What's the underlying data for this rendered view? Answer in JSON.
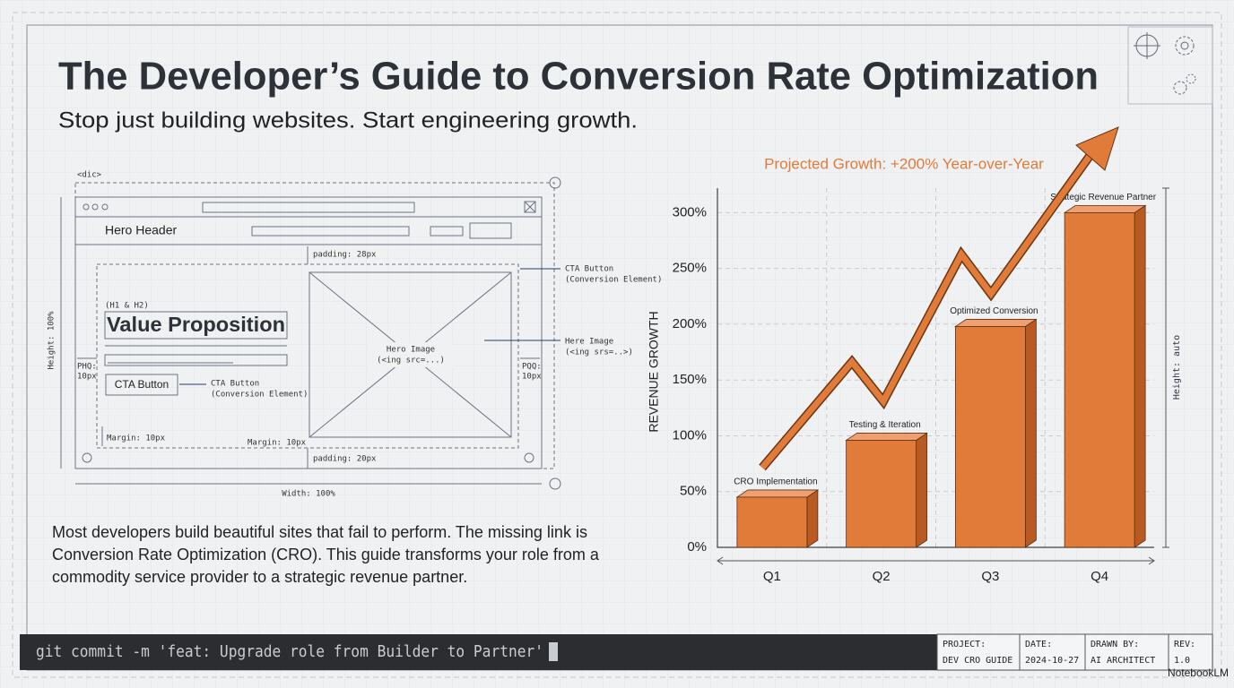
{
  "header": {
    "title": "The Developer’s Guide to Conversion Rate Optimization",
    "subtitle": "Stop just building websites. Start engineering growth."
  },
  "wireframe": {
    "tag": "<dic>",
    "hero_header": "Hero Header",
    "padding_top": "padding: 28px",
    "cta_note": "CTA Button",
    "cta_note_sub": "(Conversion Element)",
    "heading_tag": "(H1 & H2)",
    "value_prop": "Value Proposition",
    "hero_image": "Hero Image",
    "hero_image_sub": "(<ing src=...)",
    "hero_image_note": "Here Image",
    "hero_image_note_sub": "(<ing srs=..>)",
    "left_pad": "PHQ:",
    "left_pad_val": "10px",
    "right_pad": "PQQ:",
    "right_pad_val": "10px",
    "cta_button": "CTA Button",
    "cta_side": "CTA Button",
    "cta_side_sub": "(Conversion Element)",
    "margin_left": "Margin: 10px",
    "margin_right": "Margin: 10px",
    "padding_bottom": "padding: 20px",
    "width": "Width: 100%",
    "height": "Height: 100%"
  },
  "body": "Most developers build beautiful sites that fail to perform. The missing link is Conversion Rate Optimization (CRO). This guide transforms your role from a commodity service provider to a strategic revenue partner.",
  "chart_data": {
    "type": "bar",
    "title": "Projected Growth: +200% Year-over-Year",
    "y_label": "REVENUE GROWTH",
    "categories": [
      "Q1",
      "Q2",
      "Q3",
      "Q4"
    ],
    "values": [
      45,
      96,
      198,
      300
    ],
    "annotations": [
      "CRO Implementation",
      "Testing & Iteration",
      "Optimized Conversion",
      "Strategic Revenue Partner"
    ],
    "color": "#e07b39",
    "ylim": [
      0,
      322
    ],
    "yticks": [
      {
        "value": 0,
        "label": "0%"
      },
      {
        "value": 50,
        "label": "50%"
      },
      {
        "value": 100,
        "label": "100%"
      },
      {
        "value": 150,
        "label": "150%"
      },
      {
        "value": 200,
        "label": "200%"
      },
      {
        "value": 250,
        "label": "250%"
      },
      {
        "value": 300,
        "label": "300%"
      }
    ],
    "grid": true,
    "side_note": "Height: auto"
  },
  "terminal": "git commit -m 'feat: Upgrade role from Builder to Partner'",
  "title_block": [
    {
      "label": "PROJECT:",
      "value": "DEV CRO GUIDE"
    },
    {
      "label": "DATE:",
      "value": "2024-10-27"
    },
    {
      "label": "DRAWN BY:",
      "value": "AI ARCHITECT"
    },
    {
      "label": "REV:",
      "value": "1.0"
    }
  ],
  "watermark": "NotebookLM"
}
